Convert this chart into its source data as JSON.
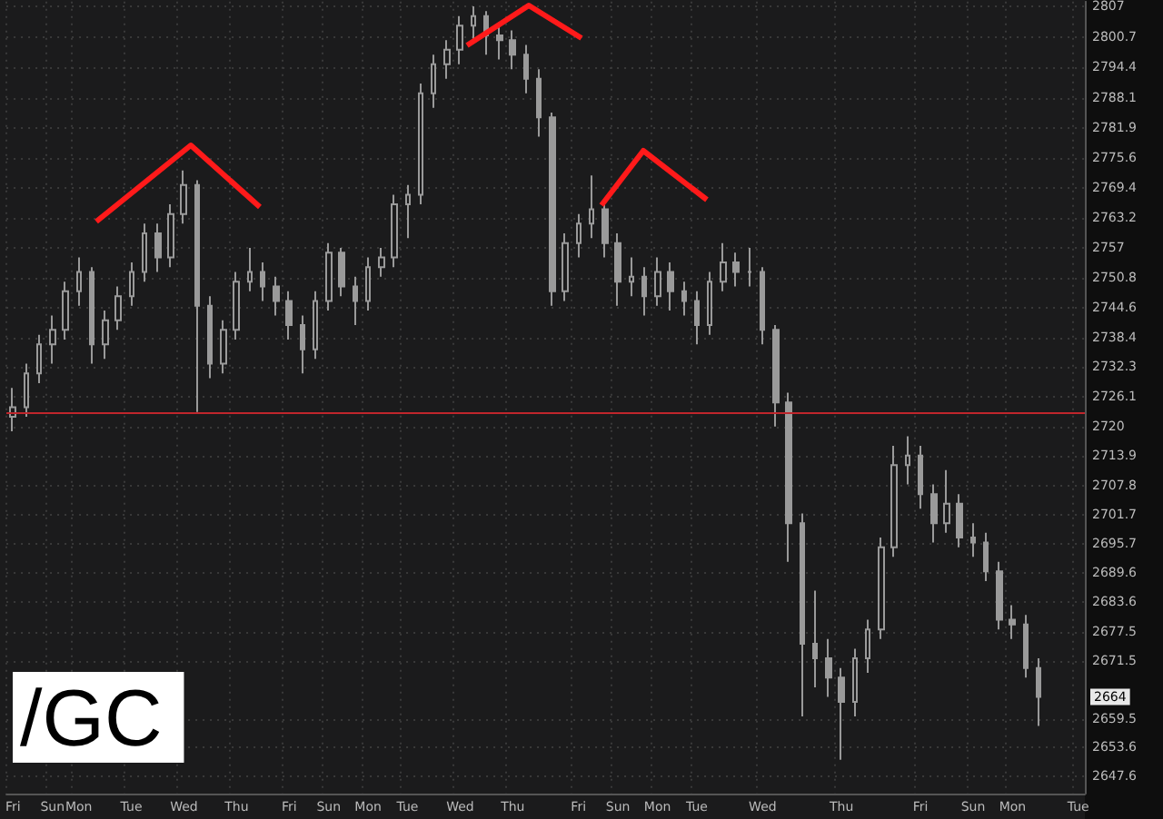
{
  "chart_data": {
    "type": "candlestick",
    "title": "/GC",
    "categories": [
      "Fri",
      null,
      null,
      "Sun",
      null,
      "Mon",
      null,
      null,
      null,
      "Tue",
      null,
      null,
      null,
      "Wed",
      null,
      null,
      null,
      "Thu",
      null,
      null,
      null,
      "Fri",
      null,
      null,
      "Sun",
      null,
      null,
      "Mon",
      null,
      null,
      "Tue",
      null,
      null,
      null,
      "Wed",
      null,
      null,
      null,
      "Thu",
      null,
      null,
      null,
      null,
      "Fri",
      null,
      null,
      "Sun",
      null,
      null,
      "Mon",
      null,
      null,
      "Tue",
      null,
      null,
      null,
      null,
      "Wed",
      null,
      null,
      null,
      null,
      null,
      "Thu",
      null,
      null,
      null,
      null,
      null,
      "Fri",
      null,
      null,
      null,
      "Sun",
      null,
      null,
      "Mon",
      null,
      null,
      null,
      null,
      "Tue"
    ],
    "ohlc": [
      [
        2722,
        2728,
        2719,
        2724
      ],
      [
        2724,
        2733,
        2722,
        2731
      ],
      [
        2731,
        2739,
        2729,
        2737
      ],
      [
        2737,
        2743,
        2733,
        2740
      ],
      [
        2740,
        2750,
        2738,
        2748
      ],
      [
        2748,
        2755,
        2745,
        2752
      ],
      [
        2752,
        2753,
        2733,
        2737
      ],
      [
        2737,
        2744,
        2734,
        2742
      ],
      [
        2742,
        2749,
        2740,
        2747
      ],
      [
        2747,
        2754,
        2745,
        2752
      ],
      [
        2752,
        2762,
        2750,
        2760
      ],
      [
        2760,
        2762,
        2752,
        2755
      ],
      [
        2755,
        2766,
        2753,
        2764
      ],
      [
        2764,
        2773,
        2762,
        2770
      ],
      [
        2770,
        2771,
        2723,
        2745
      ],
      [
        2745,
        2747,
        2730,
        2733
      ],
      [
        2733,
        2742,
        2731,
        2740
      ],
      [
        2740,
        2752,
        2738,
        2750
      ],
      [
        2750,
        2757,
        2748,
        2752
      ],
      [
        2752,
        2754,
        2746,
        2749
      ],
      [
        2749,
        2751,
        2743,
        2746
      ],
      [
        2746,
        2748,
        2738,
        2741
      ],
      [
        2741,
        2743,
        2731,
        2736
      ],
      [
        2736,
        2748,
        2734,
        2746
      ],
      [
        2746,
        2758,
        2744,
        2756
      ],
      [
        2756,
        2757,
        2747,
        2749
      ],
      [
        2749,
        2751,
        2741,
        2746
      ],
      [
        2746,
        2755,
        2744,
        2753
      ],
      [
        2753,
        2757,
        2751,
        2755
      ],
      [
        2755,
        2768,
        2753,
        2766
      ],
      [
        2766,
        2770,
        2759,
        2768
      ],
      [
        2768,
        2791,
        2766,
        2789
      ],
      [
        2789,
        2797,
        2786,
        2795
      ],
      [
        2795,
        2800,
        2792,
        2798
      ],
      [
        2798,
        2805,
        2795,
        2803
      ],
      [
        2803,
        2807,
        2800,
        2805
      ],
      [
        2805,
        2806,
        2797,
        2801
      ],
      [
        2801,
        2803,
        2796,
        2800
      ],
      [
        2800,
        2802,
        2794,
        2797
      ],
      [
        2797,
        2799,
        2789,
        2792
      ],
      [
        2792,
        2794,
        2780,
        2784
      ],
      [
        2784,
        2785,
        2745,
        2748
      ],
      [
        2748,
        2760,
        2746,
        2758
      ],
      [
        2758,
        2764,
        2755,
        2762
      ],
      [
        2762,
        2772,
        2759,
        2765
      ],
      [
        2765,
        2767,
        2755,
        2758
      ],
      [
        2758,
        2760,
        2745,
        2750
      ],
      [
        2750,
        2755,
        2747,
        2751
      ],
      [
        2751,
        2753,
        2743,
        2747
      ],
      [
        2747,
        2755,
        2745,
        2752
      ],
      [
        2752,
        2754,
        2744,
        2748
      ],
      [
        2748,
        2750,
        2743,
        2746
      ],
      [
        2746,
        2748,
        2737,
        2741
      ],
      [
        2741,
        2752,
        2739,
        2750
      ],
      [
        2750,
        2758,
        2748,
        2754
      ],
      [
        2754,
        2756,
        2749,
        2752
      ],
      [
        2752,
        2757,
        2749,
        2752
      ],
      [
        2752,
        2753,
        2737,
        2740
      ],
      [
        2740,
        2741,
        2720,
        2725
      ],
      [
        2725,
        2727,
        2692,
        2700
      ],
      [
        2700,
        2702,
        2660,
        2675
      ],
      [
        2675,
        2686,
        2666,
        2672
      ],
      [
        2672,
        2676,
        2664,
        2668
      ],
      [
        2668,
        2670,
        2651,
        2663
      ],
      [
        2663,
        2674,
        2660,
        2672
      ],
      [
        2672,
        2680,
        2669,
        2678
      ],
      [
        2678,
        2697,
        2676,
        2695
      ],
      [
        2695,
        2716,
        2693,
        2712
      ],
      [
        2712,
        2718,
        2708,
        2714
      ],
      [
        2714,
        2716,
        2703,
        2706
      ],
      [
        2706,
        2708,
        2696,
        2700
      ],
      [
        2700,
        2711,
        2698,
        2704
      ],
      [
        2704,
        2706,
        2695,
        2697
      ],
      [
        2697,
        2700,
        2693,
        2696
      ],
      [
        2696,
        2698,
        2688,
        2690
      ],
      [
        2690,
        2692,
        2678,
        2680
      ],
      [
        2680,
        2683,
        2676,
        2679
      ],
      [
        2679,
        2681,
        2668,
        2670
      ],
      [
        2670,
        2672,
        2658,
        2664
      ],
      null,
      null,
      null
    ],
    "color": "#9a9a9a",
    "ylim": [
      2644,
      2808
    ],
    "yticks": [
      2647.6,
      2653.6,
      2659.5,
      2671.5,
      2677.5,
      2683.6,
      2689.6,
      2695.7,
      2701.7,
      2707.8,
      2713.9,
      2720,
      2726.1,
      2732.3,
      2738.4,
      2744.6,
      2750.8,
      2757,
      2763.2,
      2769.4,
      2775.6,
      2781.9,
      2788.1,
      2794.4,
      2800.7,
      2807
    ],
    "grid": true,
    "ref_lines": [
      {
        "axis": "y",
        "value": 2723,
        "color": "#c0262c"
      }
    ],
    "annotations": [
      {
        "text": "2664",
        "y": 2664
      }
    ]
  }
}
